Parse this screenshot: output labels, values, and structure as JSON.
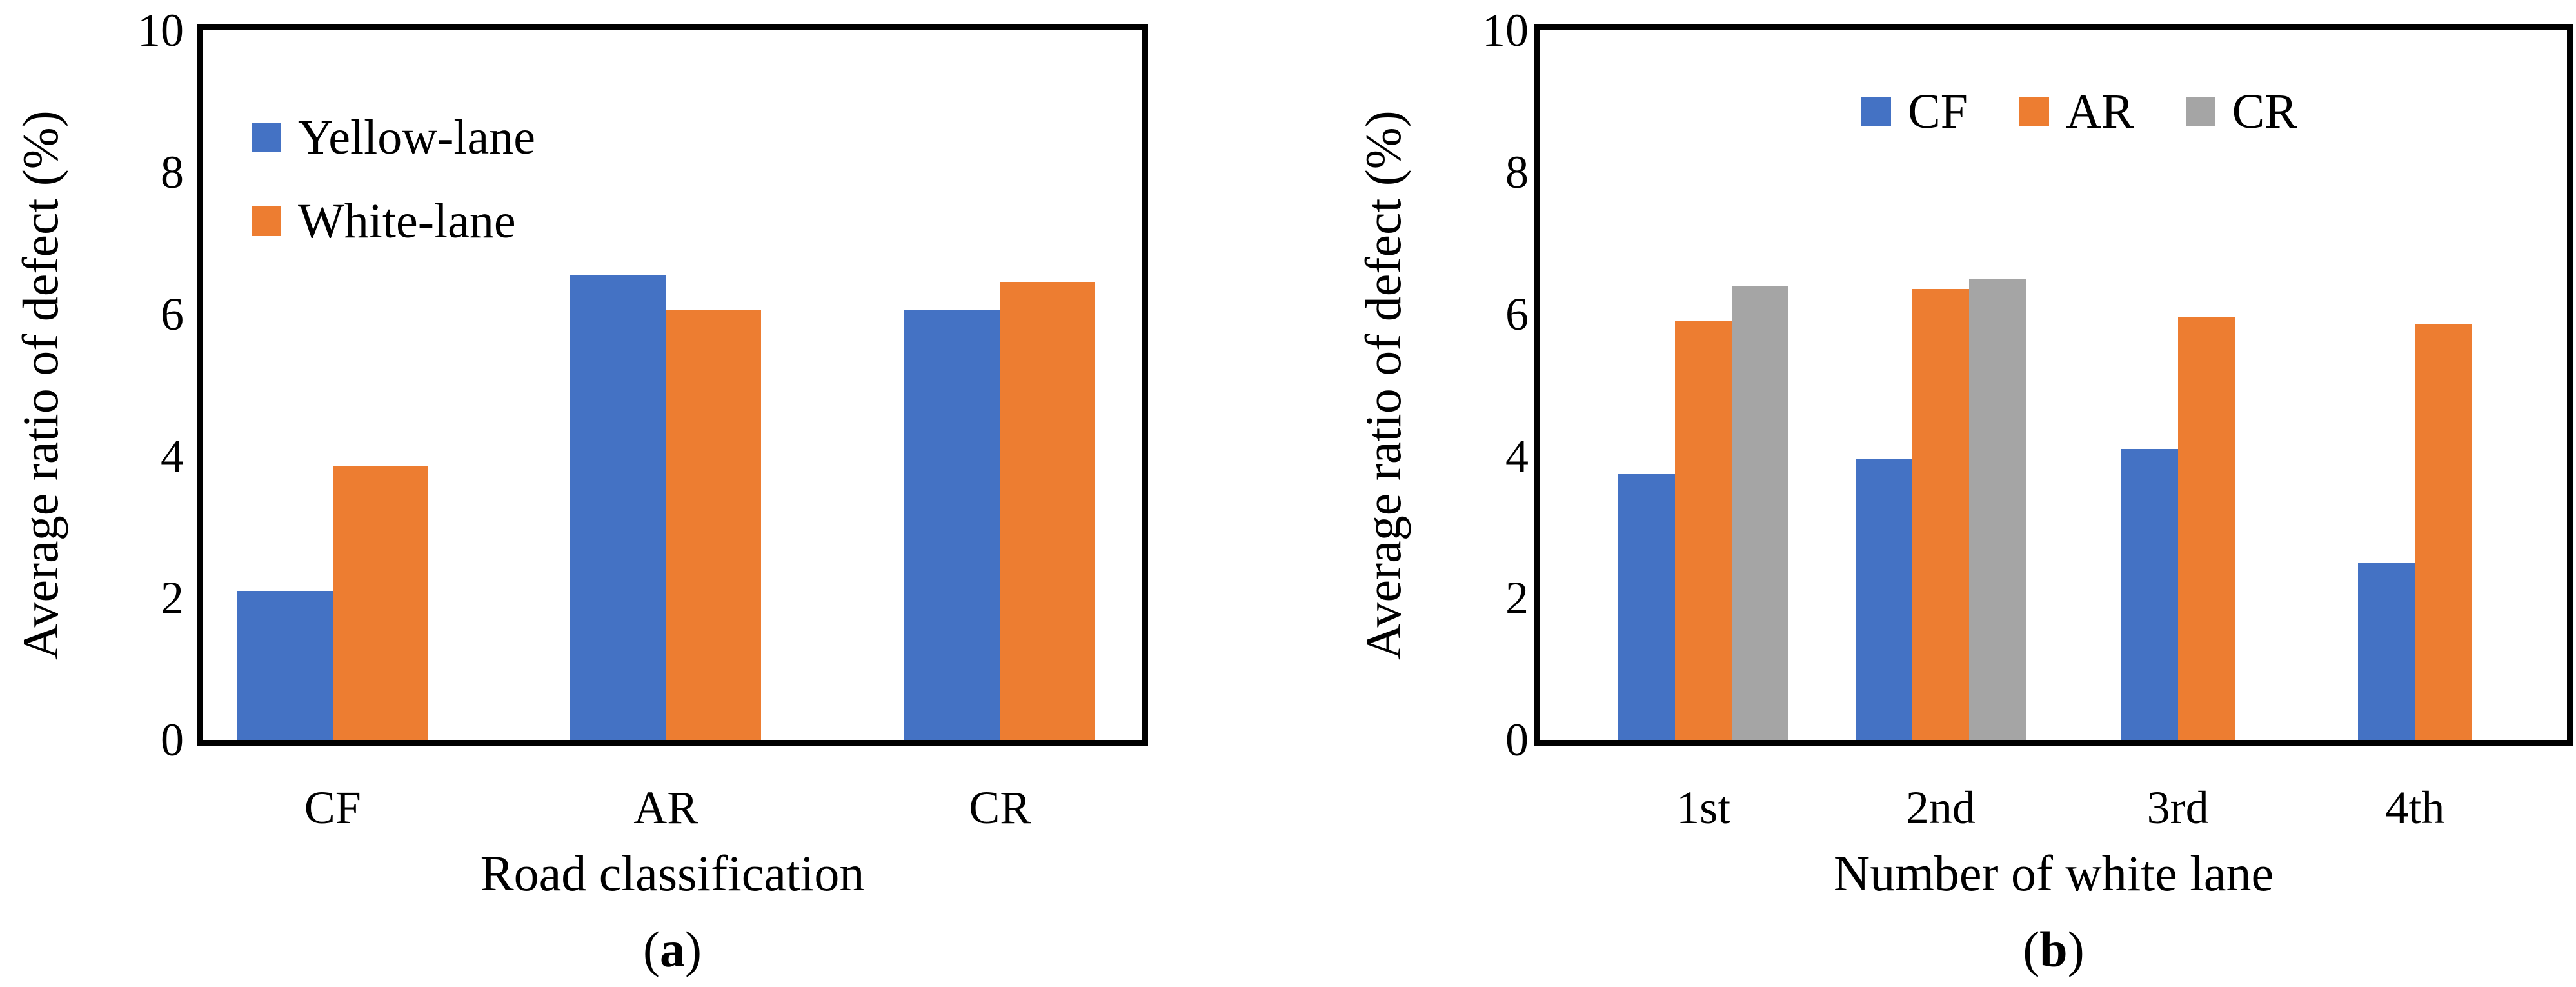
{
  "figure": {
    "background": "#ffffff",
    "axis_color": "#000000",
    "palette": {
      "blue": "#4472C4",
      "orange": "#ED7D31",
      "gray": "#A5A5A5"
    }
  },
  "chart_data": [
    {
      "id": "a",
      "type": "bar",
      "caption": "(a)",
      "ylabel": "Average ratio of defect (%)",
      "xlabel": "Road classification",
      "ylim": [
        0,
        10
      ],
      "yticks": [
        0,
        2,
        4,
        6,
        8,
        10
      ],
      "grid": false,
      "legend_position": "top-left-vertical",
      "categories": [
        "CF",
        "AR",
        "CR"
      ],
      "series": [
        {
          "name": "Yellow-lane",
          "color": "#4472C4",
          "values": [
            2.1,
            6.55,
            6.05
          ]
        },
        {
          "name": "White-lane",
          "color": "#ED7D31",
          "values": [
            3.85,
            6.05,
            6.45
          ]
        }
      ]
    },
    {
      "id": "b",
      "type": "bar",
      "caption": "(b)",
      "ylabel": "Average ratio of defect (%)",
      "xlabel": "Number of white lane",
      "ylim": [
        0,
        10
      ],
      "yticks": [
        0,
        2,
        4,
        6,
        8,
        10
      ],
      "grid": false,
      "legend_position": "top-center-horizontal",
      "categories": [
        "1st",
        "2nd",
        "3rd",
        "4th"
      ],
      "series": [
        {
          "name": "CF",
          "color": "#4472C4",
          "values": [
            3.75,
            3.95,
            4.1,
            2.5
          ]
        },
        {
          "name": "AR",
          "color": "#ED7D31",
          "values": [
            5.9,
            6.35,
            5.95,
            5.85
          ]
        },
        {
          "name": "CR",
          "color": "#A5A5A5",
          "values": [
            6.4,
            6.5,
            null,
            null
          ]
        }
      ]
    }
  ]
}
